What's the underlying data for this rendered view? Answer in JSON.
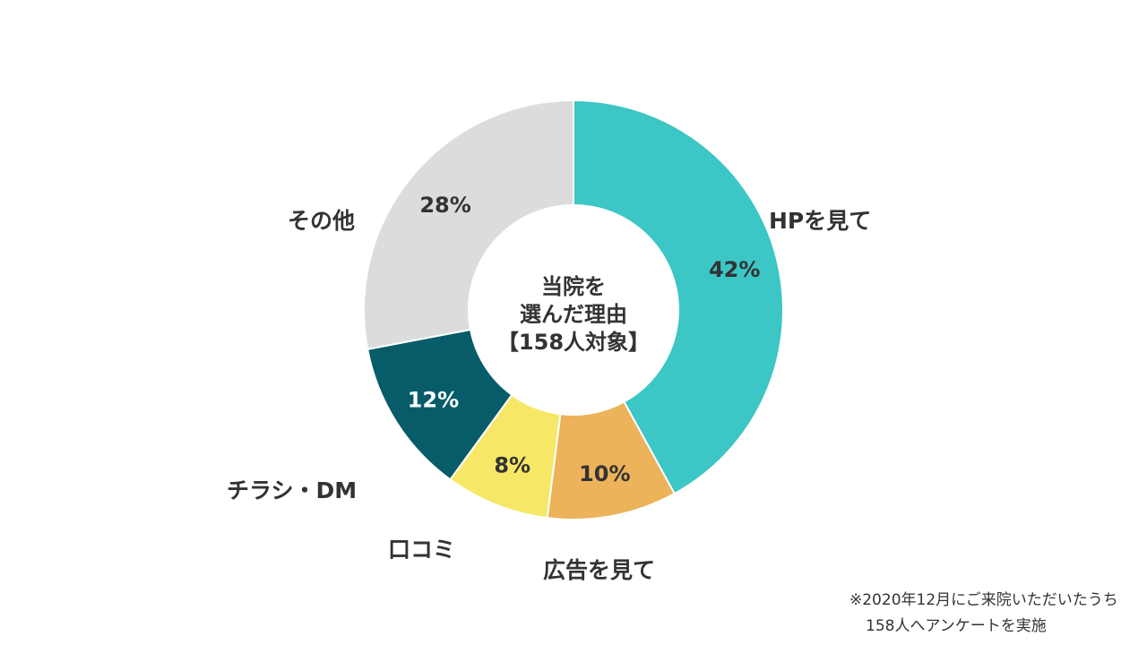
{
  "chart_data": {
    "type": "donut",
    "center_title": [
      "当院を",
      "選んだ理由",
      "【158人対象】"
    ],
    "slices": [
      {
        "label": "HPを見て",
        "value": 42,
        "value_label": "42%",
        "color": "#3cc6c6"
      },
      {
        "label": "広告を見て",
        "value": 10,
        "value_label": "10%",
        "color": "#ecb35a"
      },
      {
        "label": "口コミ",
        "value": 8,
        "value_label": "8%",
        "color": "#f6e866"
      },
      {
        "label": "チラシ・DM",
        "value": 12,
        "value_label": "12%",
        "color": "#085c69"
      },
      {
        "label": "その他",
        "value": 28,
        "value_label": "28%",
        "color": "#dcdcdc"
      }
    ]
  },
  "footnote": {
    "line1": "※2020年12月にご来院いただいたうち",
    "line2": "158人へアンケートを実施"
  }
}
